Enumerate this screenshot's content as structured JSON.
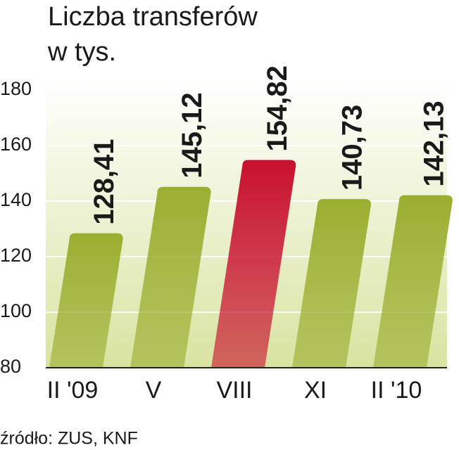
{
  "chart_data": {
    "type": "bar",
    "title": [
      "Liczba transferów",
      "w tys."
    ],
    "categories": [
      "II '09",
      "V",
      "VIII",
      "XI",
      "II '10"
    ],
    "values": [
      128.41,
      145.12,
      154.82,
      140.73,
      142.13
    ],
    "value_labels": [
      "128,41",
      "145,12",
      "154,82",
      "140,73",
      "142,13"
    ],
    "colors": [
      "#9cad2e",
      "#9cad2e",
      "#c8102e",
      "#9cad2e",
      "#9cad2e"
    ],
    "ylim": [
      80,
      180
    ],
    "yticks": [
      80,
      100,
      120,
      140,
      160,
      180
    ],
    "grid": true,
    "source": "źródło: ZUS, KNF"
  }
}
